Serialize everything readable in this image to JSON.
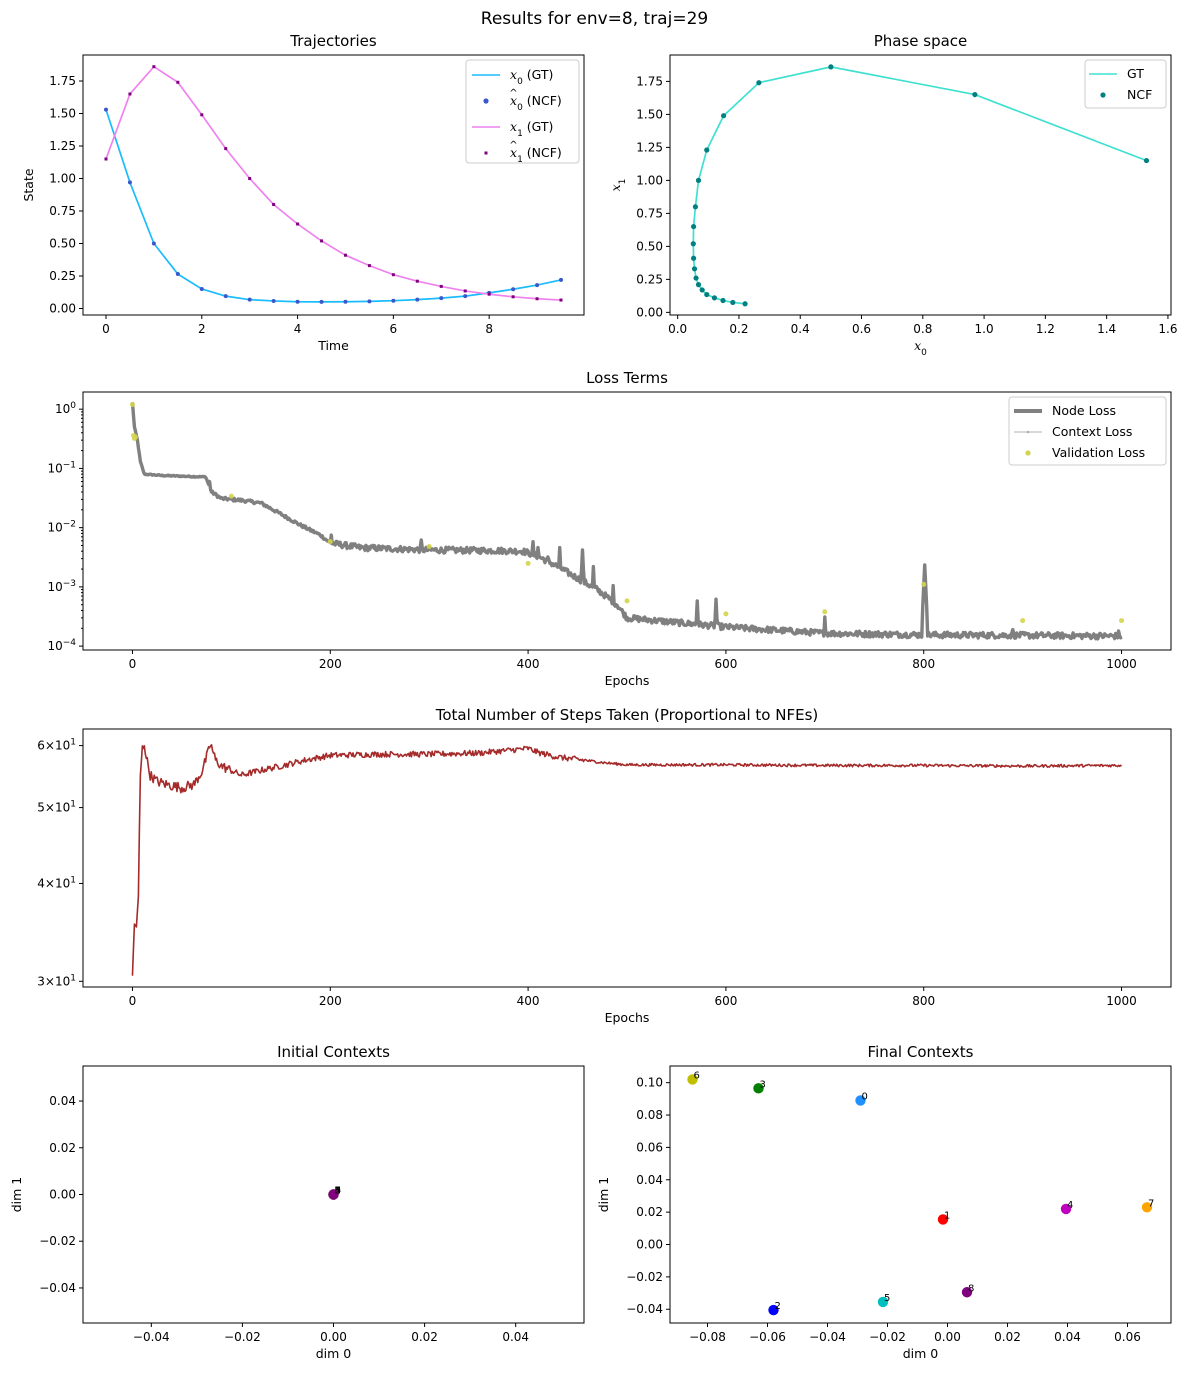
{
  "figure": {
    "suptitle": "Results for env=8, traj=29"
  },
  "chart_data": [
    {
      "id": "trajectories",
      "type": "line",
      "title": "Trajectories",
      "xlabel": "Time",
      "ylabel": "State",
      "xlim": [
        -0.48,
        9.98
      ],
      "ylim": [
        -0.05,
        1.95
      ],
      "xticks": [
        0,
        2,
        4,
        6,
        8
      ],
      "yticks": [
        0.0,
        0.25,
        0.5,
        0.75,
        1.0,
        1.25,
        1.5,
        1.75
      ],
      "ytick_labels": [
        "0.00",
        "0.25",
        "0.50",
        "0.75",
        "1.00",
        "1.25",
        "1.50",
        "1.75"
      ],
      "legend_position": "upper right",
      "legend": [
        {
          "name": "x0 (GT)",
          "sym": "x",
          "sub": "0",
          "hat": false,
          "tail": " (GT)",
          "style": "line",
          "color": "#1abcfe"
        },
        {
          "name": "x̂0 (NCF)",
          "sym": "x",
          "sub": "0",
          "hat": true,
          "tail": " (NCF)",
          "style": "dot",
          "color": "#3a58c9"
        },
        {
          "name": "x1 (GT)",
          "sym": "x",
          "sub": "1",
          "hat": false,
          "tail": " (GT)",
          "style": "line",
          "color": "#ee82ee"
        },
        {
          "name": "x̂1 (NCF)",
          "sym": "x",
          "sub": "1",
          "hat": true,
          "tail": " (NCF)",
          "style": "square",
          "color": "#800080"
        }
      ],
      "x": [
        0,
        0.5,
        1,
        1.5,
        2,
        2.5,
        3,
        3.5,
        4,
        4.5,
        5,
        5.5,
        6,
        6.5,
        7,
        7.5,
        8,
        8.5,
        9,
        9.5
      ],
      "series": [
        {
          "name": "x0 (GT)",
          "color": "#1abcfe",
          "style": "line",
          "values": [
            1.53,
            0.97,
            0.5,
            0.265,
            0.15,
            0.095,
            0.068,
            0.058,
            0.052,
            0.051,
            0.052,
            0.055,
            0.06,
            0.068,
            0.08,
            0.095,
            0.12,
            0.148,
            0.18,
            0.22
          ]
        },
        {
          "name": "x̂0 (NCF)",
          "color": "#3a58c9",
          "style": "dot",
          "values": [
            1.53,
            0.97,
            0.5,
            0.265,
            0.15,
            0.095,
            0.068,
            0.058,
            0.052,
            0.051,
            0.052,
            0.055,
            0.06,
            0.068,
            0.08,
            0.095,
            0.12,
            0.148,
            0.18,
            0.22
          ]
        },
        {
          "name": "x1 (GT)",
          "color": "#ee82ee",
          "style": "line",
          "values": [
            1.15,
            1.65,
            1.86,
            1.74,
            1.49,
            1.23,
            1.0,
            0.8,
            0.65,
            0.52,
            0.41,
            0.33,
            0.26,
            0.21,
            0.17,
            0.135,
            0.11,
            0.09,
            0.075,
            0.065
          ]
        },
        {
          "name": "x̂1 (NCF)",
          "color": "#800080",
          "style": "square",
          "values": [
            1.15,
            1.65,
            1.86,
            1.74,
            1.49,
            1.23,
            1.0,
            0.8,
            0.65,
            0.52,
            0.41,
            0.33,
            0.26,
            0.21,
            0.17,
            0.135,
            0.11,
            0.09,
            0.075,
            0.065
          ]
        }
      ]
    },
    {
      "id": "phase",
      "type": "line",
      "title": "Phase space",
      "xlabel_sym": "x",
      "xlabel_sub": "0",
      "ylabel_sym": "x",
      "ylabel_sub": "1",
      "xlim": [
        -0.025,
        1.61
      ],
      "ylim": [
        -0.02,
        1.95
      ],
      "xticks": [
        0.0,
        0.2,
        0.4,
        0.6,
        0.8,
        1.0,
        1.2,
        1.4,
        1.6
      ],
      "xtick_labels": [
        "0.0",
        "0.2",
        "0.4",
        "0.6",
        "0.8",
        "1.0",
        "1.2",
        "1.4",
        "1.6"
      ],
      "yticks": [
        0.0,
        0.25,
        0.5,
        0.75,
        1.0,
        1.25,
        1.5,
        1.75
      ],
      "ytick_labels": [
        "0.00",
        "0.25",
        "0.50",
        "0.75",
        "1.00",
        "1.25",
        "1.50",
        "1.75"
      ],
      "legend_position": "upper right",
      "legend": [
        {
          "name": "GT",
          "style": "line",
          "color": "#40e0d0"
        },
        {
          "name": "NCF",
          "style": "dot",
          "color": "#008080"
        }
      ],
      "series": [
        {
          "name": "GT",
          "color": "#40e0d0",
          "style": "line",
          "x": [
            1.53,
            0.97,
            0.5,
            0.265,
            0.15,
            0.095,
            0.068,
            0.058,
            0.052,
            0.051,
            0.052,
            0.055,
            0.06,
            0.068,
            0.08,
            0.095,
            0.12,
            0.148,
            0.18,
            0.22
          ],
          "y": [
            1.15,
            1.65,
            1.86,
            1.74,
            1.49,
            1.23,
            1.0,
            0.8,
            0.65,
            0.52,
            0.41,
            0.33,
            0.26,
            0.21,
            0.17,
            0.135,
            0.11,
            0.09,
            0.075,
            0.065
          ]
        },
        {
          "name": "NCF",
          "color": "#008080",
          "style": "dot",
          "x": [
            1.53,
            0.97,
            0.5,
            0.265,
            0.15,
            0.095,
            0.068,
            0.058,
            0.052,
            0.051,
            0.052,
            0.055,
            0.06,
            0.068,
            0.08,
            0.095,
            0.12,
            0.148,
            0.18,
            0.22
          ],
          "y": [
            1.15,
            1.65,
            1.86,
            1.74,
            1.49,
            1.23,
            1.0,
            0.8,
            0.65,
            0.52,
            0.41,
            0.33,
            0.26,
            0.21,
            0.17,
            0.135,
            0.11,
            0.09,
            0.075,
            0.065
          ]
        }
      ]
    },
    {
      "id": "loss",
      "type": "line",
      "title": "Loss Terms",
      "xlabel": "Epochs",
      "yscale": "log",
      "xlim": [
        -50,
        1050
      ],
      "ylim": [
        8.6e-05,
        1.95
      ],
      "xticks": [
        0,
        200,
        400,
        600,
        800,
        1000
      ],
      "yticks_exp": [
        -4,
        -3,
        -2,
        -1,
        0
      ],
      "legend_position": "upper right",
      "legend": [
        {
          "name": "Node Loss",
          "style": "thickline",
          "color": "#808080"
        },
        {
          "name": "Context Loss",
          "style": "thinline",
          "color": "#b0b0b0"
        },
        {
          "name": "Validation Loss",
          "style": "dot",
          "color": "#d4d44c"
        }
      ],
      "base_curve": [
        [
          0,
          1.3
        ],
        [
          2,
          0.5
        ],
        [
          5,
          0.3
        ],
        [
          8,
          0.13
        ],
        [
          12,
          0.08
        ],
        [
          30,
          0.076
        ],
        [
          60,
          0.073
        ],
        [
          74,
          0.072
        ],
        [
          80,
          0.04
        ],
        [
          90,
          0.031
        ],
        [
          110,
          0.029
        ],
        [
          130,
          0.026
        ],
        [
          150,
          0.017
        ],
        [
          170,
          0.011
        ],
        [
          190,
          0.0075
        ],
        [
          200,
          0.0055
        ],
        [
          230,
          0.0046
        ],
        [
          300,
          0.0042
        ],
        [
          370,
          0.0041
        ],
        [
          395,
          0.004
        ],
        [
          410,
          0.0033
        ],
        [
          430,
          0.0022
        ],
        [
          450,
          0.0014
        ],
        [
          470,
          0.0009
        ],
        [
          490,
          0.0005
        ],
        [
          500,
          0.0003
        ],
        [
          540,
          0.00026
        ],
        [
          600,
          0.00021
        ],
        [
          700,
          0.000165
        ],
        [
          800,
          0.000155
        ],
        [
          900,
          0.000152
        ],
        [
          1000,
          0.000148
        ]
      ],
      "spikes": [
        [
          78,
          0.06
        ],
        [
          201,
          0.0075
        ],
        [
          292,
          0.0062
        ],
        [
          405,
          0.0058
        ],
        [
          410,
          0.0046
        ],
        [
          420,
          0.0032
        ],
        [
          432,
          0.0046
        ],
        [
          455,
          0.0042
        ],
        [
          466,
          0.0022
        ],
        [
          486,
          0.00105
        ],
        [
          571,
          0.00058
        ],
        [
          590,
          0.00062
        ],
        [
          700,
          0.00031
        ],
        [
          801,
          0.00235
        ],
        [
          890,
          0.00019
        ],
        [
          997,
          0.00018
        ]
      ],
      "validation": {
        "epochs": [
          0,
          1,
          2,
          3,
          100,
          200,
          300,
          400,
          500,
          600,
          700,
          800,
          900,
          1000
        ],
        "values": [
          1.2,
          0.36,
          0.32,
          0.34,
          0.034,
          0.0058,
          0.0048,
          0.0025,
          0.00058,
          0.00035,
          0.00038,
          0.0011,
          0.00027,
          0.00027
        ]
      }
    },
    {
      "id": "nfe",
      "type": "line",
      "title": "Total Number of Steps Taken (Proportional to NFEs)",
      "xlabel": "Epochs",
      "yscale": "log",
      "xlim": [
        -50,
        1050
      ],
      "ylim": [
        29.5,
        63.0
      ],
      "xticks": [
        0,
        200,
        400,
        600,
        800,
        1000
      ],
      "yticks": [
        30,
        40,
        50,
        60
      ],
      "series_color": "#a52a2a",
      "keypoints": [
        [
          0,
          30.5
        ],
        [
          2,
          35.5
        ],
        [
          4,
          35.2
        ],
        [
          6,
          38.5
        ],
        [
          8,
          55
        ],
        [
          10,
          59.5
        ],
        [
          12,
          60.3
        ],
        [
          14,
          58
        ],
        [
          18,
          55
        ],
        [
          25,
          54
        ],
        [
          35,
          53.5
        ],
        [
          50,
          53
        ],
        [
          62,
          53.5
        ],
        [
          70,
          55.5
        ],
        [
          75,
          58
        ],
        [
          79,
          60.3
        ],
        [
          84,
          57.5
        ],
        [
          90,
          56.5
        ],
        [
          110,
          55
        ],
        [
          130,
          55.8
        ],
        [
          150,
          56.5
        ],
        [
          175,
          57.5
        ],
        [
          200,
          58.3
        ],
        [
          250,
          58.5
        ],
        [
          300,
          58.5
        ],
        [
          350,
          58.7
        ],
        [
          400,
          59.5
        ],
        [
          410,
          58.8
        ],
        [
          430,
          58
        ],
        [
          450,
          57.6
        ],
        [
          480,
          57
        ],
        [
          500,
          56.7
        ],
        [
          600,
          56.7
        ],
        [
          700,
          56.6
        ],
        [
          800,
          56.6
        ],
        [
          900,
          56.5
        ],
        [
          1000,
          56.6
        ]
      ]
    },
    {
      "id": "initial_contexts",
      "type": "scatter",
      "title": "Initial Contexts",
      "xlabel": "dim 0",
      "ylabel": "dim 1",
      "xlim": [
        -0.055,
        0.055
      ],
      "ylim": [
        -0.055,
        0.055
      ],
      "xticks": [
        -0.04,
        -0.02,
        0.0,
        0.02,
        0.04
      ],
      "xtick_labels": [
        "−0.04",
        "−0.02",
        "0.00",
        "0.02",
        "0.04"
      ],
      "yticks": [
        -0.04,
        -0.02,
        0.0,
        0.02,
        0.04
      ],
      "ytick_labels": [
        "−0.04",
        "−0.02",
        "0.00",
        "0.02",
        "0.04"
      ],
      "points": [
        {
          "label": "0",
          "x": 0.0,
          "y": 0.0,
          "color": "#1e90ff"
        },
        {
          "label": "1",
          "x": 0.0,
          "y": 0.0,
          "color": "#ff0000"
        },
        {
          "label": "2",
          "x": 0.0,
          "y": 0.0,
          "color": "#0000ff"
        },
        {
          "label": "3",
          "x": 0.0,
          "y": 0.0,
          "color": "#008000"
        },
        {
          "label": "4",
          "x": 0.0,
          "y": 0.0,
          "color": "#bf00bf"
        },
        {
          "label": "5",
          "x": 0.0,
          "y": 0.0,
          "color": "#00bfbf"
        },
        {
          "label": "6",
          "x": 0.0,
          "y": 0.0,
          "color": "#bfbf00"
        },
        {
          "label": "7",
          "x": 0.0,
          "y": 0.0,
          "color": "#ffa500"
        },
        {
          "label": "8",
          "x": 0.0,
          "y": 0.0,
          "color": "#800080"
        }
      ]
    },
    {
      "id": "final_contexts",
      "type": "scatter",
      "title": "Final Contexts",
      "xlabel": "dim 0",
      "ylabel": "dim 1",
      "xlim": [
        -0.0925,
        0.0745
      ],
      "ylim": [
        -0.0485,
        0.1103
      ],
      "xticks": [
        -0.08,
        -0.06,
        -0.04,
        -0.02,
        0.0,
        0.02,
        0.04,
        0.06
      ],
      "xtick_labels": [
        "−0.08",
        "−0.06",
        "−0.04",
        "−0.02",
        "0.00",
        "0.02",
        "0.04",
        "0.06"
      ],
      "yticks": [
        -0.04,
        -0.02,
        0.0,
        0.02,
        0.04,
        0.06,
        0.08,
        0.1
      ],
      "ytick_labels": [
        "−0.04",
        "−0.02",
        "0.00",
        "0.02",
        "0.04",
        "0.06",
        "0.08",
        "0.10"
      ],
      "points": [
        {
          "label": "0",
          "x": -0.029,
          "y": 0.089,
          "color": "#1e90ff"
        },
        {
          "label": "1",
          "x": -0.0015,
          "y": 0.0155,
          "color": "#ff0000"
        },
        {
          "label": "2",
          "x": -0.058,
          "y": -0.0405,
          "color": "#0000ff"
        },
        {
          "label": "3",
          "x": -0.063,
          "y": 0.0965,
          "color": "#008000"
        },
        {
          "label": "4",
          "x": 0.0395,
          "y": 0.022,
          "color": "#bf00bf"
        },
        {
          "label": "5",
          "x": -0.0215,
          "y": -0.0355,
          "color": "#00bfbf"
        },
        {
          "label": "6",
          "x": -0.085,
          "y": 0.102,
          "color": "#bfbf00"
        },
        {
          "label": "7",
          "x": 0.0665,
          "y": 0.023,
          "color": "#ffa500"
        },
        {
          "label": "8",
          "x": 0.0065,
          "y": -0.0295,
          "color": "#800080"
        }
      ]
    }
  ]
}
